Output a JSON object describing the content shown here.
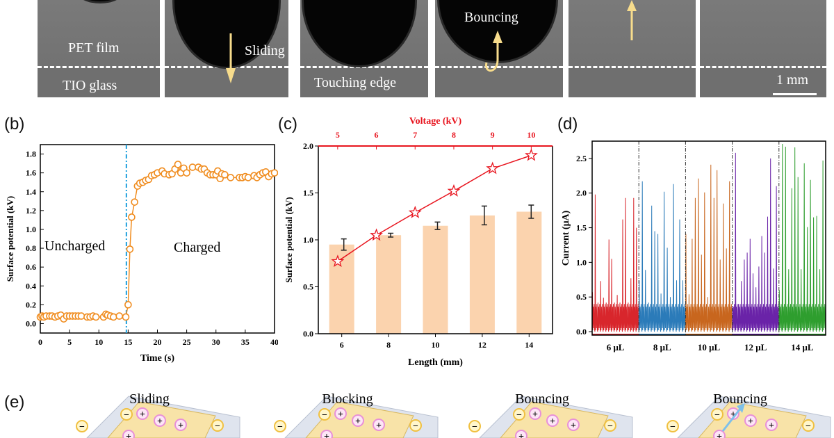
{
  "panel_a": {
    "labels": {
      "pet_film": "PET film",
      "tio_glass": "TIO glass",
      "sliding": "Sliding",
      "touching_edge": "Touching edge",
      "bouncing": "Bouncing",
      "scale_bar": "1 mm"
    },
    "arrow_color": "#f7dc8c"
  },
  "panel_labels": {
    "b": "(b)",
    "c": "(c)",
    "d": "(d)",
    "e": "(e)"
  },
  "chart_data": [
    {
      "id": "b",
      "type": "scatter",
      "xlabel": "Time (s)",
      "ylabel": "Surface potential (kV)",
      "xlim": [
        0,
        40
      ],
      "ylim": [
        -0.1,
        1.9
      ],
      "xticks": [
        "0",
        "5",
        "10",
        "15",
        "20",
        "25",
        "30",
        "35",
        "40"
      ],
      "yticks": [
        "0.0",
        "0.2",
        "0.4",
        "0.6",
        "0.8",
        "1.0",
        "1.2",
        "1.4",
        "1.6",
        "1.8"
      ],
      "color": "#f08c1e",
      "divider_x": 14.7,
      "divider_color": "#1ea0dc",
      "annotations": [
        "Uncharged",
        "Charged"
      ],
      "points": [
        [
          0,
          0.07
        ],
        [
          0.3,
          0.08
        ],
        [
          0.6,
          0.07
        ],
        [
          1,
          0.08
        ],
        [
          1.6,
          0.08
        ],
        [
          2,
          0.08
        ],
        [
          2.5,
          0.07
        ],
        [
          3,
          0.08
        ],
        [
          3.5,
          0.09
        ],
        [
          4,
          0.05
        ],
        [
          4.5,
          0.08
        ],
        [
          5,
          0.08
        ],
        [
          5.5,
          0.08
        ],
        [
          6,
          0.08
        ],
        [
          6.5,
          0.08
        ],
        [
          7,
          0.08
        ],
        [
          8,
          0.07
        ],
        [
          8.5,
          0.07
        ],
        [
          9,
          0.08
        ],
        [
          9.5,
          0.07
        ],
        [
          10.8,
          0.07
        ],
        [
          11.2,
          0.1
        ],
        [
          11.5,
          0.09
        ],
        [
          12,
          0.08
        ],
        [
          12.5,
          0.07
        ],
        [
          13.5,
          0.08
        ],
        [
          14.6,
          0.07
        ],
        [
          15,
          0.2
        ],
        [
          15.3,
          0.79
        ],
        [
          15.6,
          1.13
        ],
        [
          16.1,
          1.29
        ],
        [
          16.6,
          1.46
        ],
        [
          17,
          1.49
        ],
        [
          17.5,
          1.5
        ],
        [
          18,
          1.52
        ],
        [
          18.5,
          1.53
        ],
        [
          19,
          1.57
        ],
        [
          19.5,
          1.58
        ],
        [
          20,
          1.6
        ],
        [
          20.8,
          1.62
        ],
        [
          21.2,
          1.59
        ],
        [
          22,
          1.58
        ],
        [
          22.5,
          1.59
        ],
        [
          23,
          1.64
        ],
        [
          23.5,
          1.69
        ],
        [
          24,
          1.6
        ],
        [
          24.5,
          1.65
        ],
        [
          25,
          1.6
        ],
        [
          26,
          1.66
        ],
        [
          27,
          1.66
        ],
        [
          27.5,
          1.64
        ],
        [
          28,
          1.64
        ],
        [
          28.5,
          1.6
        ],
        [
          29,
          1.58
        ],
        [
          29.5,
          1.58
        ],
        [
          30,
          1.58
        ],
        [
          30.3,
          1.62
        ],
        [
          30.7,
          1.54
        ],
        [
          31,
          1.59
        ],
        [
          31.5,
          1.58
        ],
        [
          32.5,
          1.55
        ],
        [
          34,
          1.55
        ],
        [
          34.5,
          1.55
        ],
        [
          35,
          1.56
        ],
        [
          35.5,
          1.55
        ],
        [
          36.5,
          1.57
        ],
        [
          37,
          1.55
        ],
        [
          37.5,
          1.58
        ],
        [
          38,
          1.6
        ],
        [
          38.5,
          1.61
        ],
        [
          39,
          1.56
        ],
        [
          39.5,
          1.59
        ],
        [
          40,
          1.6
        ]
      ]
    },
    {
      "id": "c",
      "type": "bar",
      "xlabel": "Length (mm)",
      "ylabel": "Surface potential (kV)",
      "top_xlabel": "Voltage (kV)",
      "xlim": [
        5,
        15
      ],
      "ylim": [
        0,
        2.0
      ],
      "top_xlim": [
        4.5,
        10.55
      ],
      "categories": [
        "6",
        "8",
        "10",
        "12",
        "14"
      ],
      "x": [
        6,
        8,
        10,
        12,
        14
      ],
      "values": [
        0.95,
        1.05,
        1.15,
        1.26,
        1.3
      ],
      "errors": [
        0.06,
        0.02,
        0.04,
        0.1,
        0.07
      ],
      "yticks": [
        "0.0",
        "0.5",
        "1.0",
        "1.5",
        "2.0"
      ],
      "top_xticks": [
        "5",
        "6",
        "7",
        "8",
        "9",
        "10"
      ],
      "bar_color": "#fbd3ae",
      "line_color": "#e8141e",
      "line_series": {
        "x": [
          5,
          6,
          7,
          8,
          9,
          10
        ],
        "values": [
          0.77,
          1.05,
          1.29,
          1.52,
          1.76,
          1.9
        ]
      }
    },
    {
      "id": "d",
      "type": "line",
      "ylabel": "Current (μA)",
      "ylim": [
        -0.05,
        2.75
      ],
      "yticks": [
        "0.0",
        "0.5",
        "1.0",
        "1.5",
        "2.0",
        "2.5"
      ],
      "series": [
        {
          "name": "6 μL",
          "color": "#d8262c",
          "peaks": [
            0.57,
            1.98,
            0.42,
            0.73,
            0.49,
            0.42,
            1.33,
            1.05,
            0.42,
            0.53,
            0.42,
            1.62,
            1.93,
            0.42,
            0.77,
            1.93,
            1.5
          ]
        },
        {
          "name": "8 μL",
          "color": "#2b7bb9",
          "peaks": [
            0.74,
            2.17,
            0.89,
            0.42,
            1.82,
            1.45,
            1.41,
            0.55,
            2.02,
            1.21,
            0.5,
            2.13,
            0.74,
            1.62,
            0.74
          ]
        },
        {
          "name": "10 μL",
          "color": "#c8661e",
          "peaks": [
            1.41,
            0.54,
            1.34,
            1.93,
            2.21,
            1.11,
            2.01,
            0.5,
            2.41,
            1.93,
            2.33,
            1.04,
            1.85,
            1.2,
            2.17
          ]
        },
        {
          "name": "12 μL",
          "color": "#6a23a8",
          "peaks": [
            0.37,
            2.58,
            0.4,
            0.73,
            1.04,
            1.14,
            1.34,
            0.84,
            0.64,
            0.94,
            1.38,
            1.14,
            1.66,
            2.5,
            0.91,
            2.1
          ]
        },
        {
          "name": "14 μL",
          "color": "#2e9e2e",
          "peaks": [
            0.6,
            2.71,
            2.67,
            0.9,
            2.07,
            2.66,
            2.23,
            0.9,
            2.43,
            1.51,
            2.19,
            1.65,
            1.67,
            0.9,
            2.47
          ]
        }
      ]
    }
  ],
  "panel_e": {
    "titles": [
      "Sliding",
      "Blocking",
      "Bouncing",
      "Bouncing"
    ],
    "plus": "+",
    "minus": "−"
  }
}
